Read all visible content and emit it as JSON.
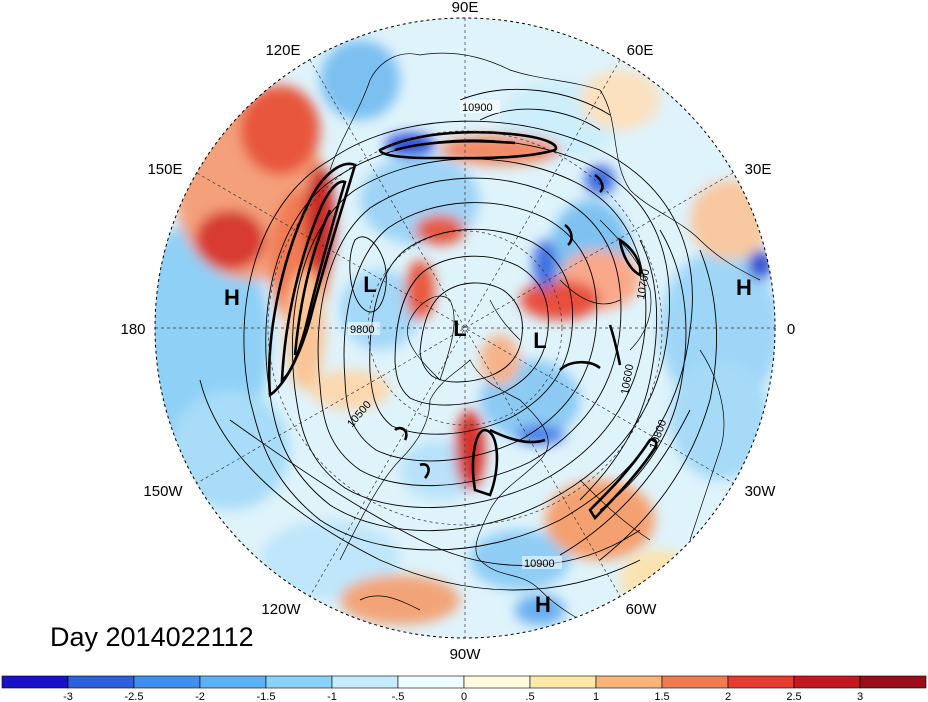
{
  "day_label": "Day 2014022112",
  "longitude_labels": [
    "90E",
    "60E",
    "30E",
    "0",
    "30W",
    "60W",
    "90W",
    "120W",
    "150W",
    "180",
    "150E",
    "120E"
  ],
  "pressure_centers": [
    "H",
    "H",
    "H",
    "L",
    "L",
    "L"
  ],
  "contour_labels": [
    "10900",
    "9800",
    "10500",
    "10700",
    "10600",
    "10800",
    "10900"
  ],
  "colorbar": {
    "tick_labels": [
      "-3",
      "-2.5",
      "-2",
      "-1.5",
      "-1",
      "-.5",
      "0",
      ".5",
      "1",
      "1.5",
      "2",
      "2.5",
      "3"
    ],
    "colors": [
      "#1a10c8",
      "#2d5fe0",
      "#3f8ef0",
      "#5cb0f6",
      "#8ad2fa",
      "#c4ecfd",
      "#eefbff",
      "#fffbe0",
      "#fde9a8",
      "#f9b47a",
      "#f27a52",
      "#e43c30",
      "#c21820",
      "#9c0c18"
    ]
  }
}
